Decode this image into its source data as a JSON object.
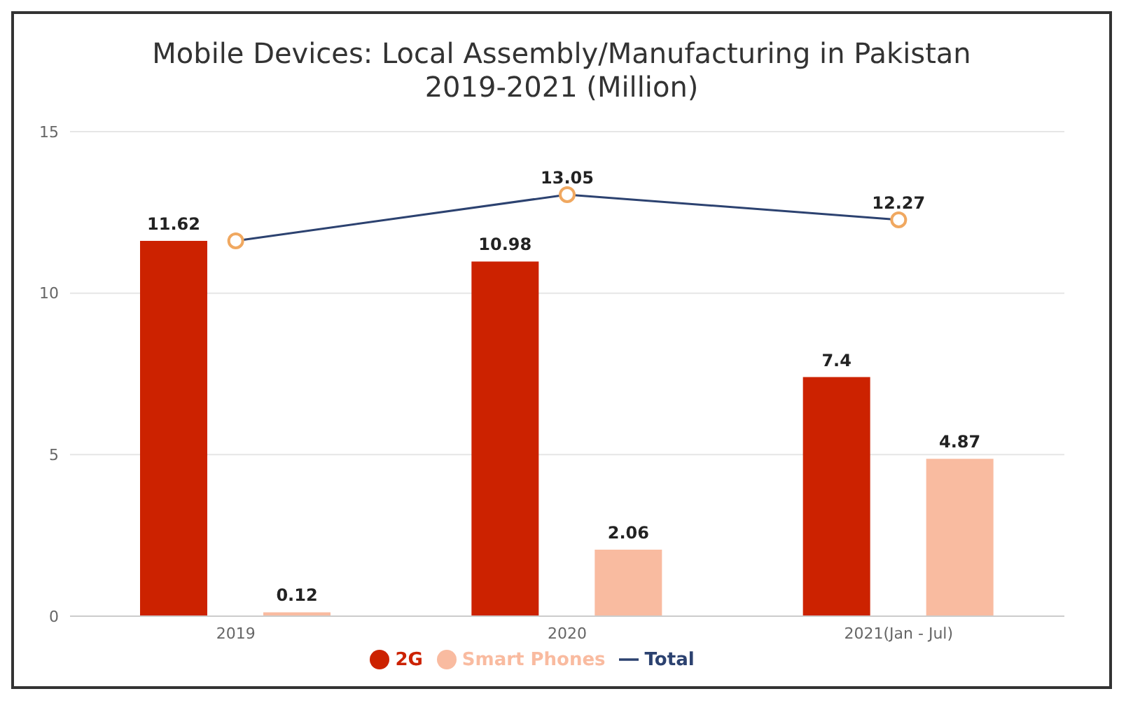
{
  "chart_data": {
    "type": "bar",
    "title": "Mobile Devices: Local Assembly/Manufacturing in Pakistan\n2019-2021 (Million)",
    "categories": [
      "2019",
      "2020",
      "2021(Jan - Jul)"
    ],
    "series": [
      {
        "name": "2G",
        "color": "#cc2200",
        "values": [
          11.62,
          10.98,
          7.4
        ],
        "value_labels": [
          "11.62",
          "10.98",
          "7.4"
        ]
      },
      {
        "name": "Smart Phones",
        "color": "#f9bba0",
        "values": [
          0.12,
          2.06,
          4.87
        ],
        "value_labels": [
          "0.12",
          "2.06",
          "4.87"
        ]
      },
      {
        "name": "Total",
        "type": "line",
        "color": "#2c4270",
        "marker": "circle",
        "values": [
          11.62,
          13.05,
          12.27
        ],
        "value_labels": [
          null,
          "13.05",
          "12.27"
        ]
      }
    ],
    "ylim": [
      0,
      15
    ],
    "yticks": [
      0,
      5,
      10,
      15
    ],
    "grid": "y",
    "legend": "bottom"
  }
}
